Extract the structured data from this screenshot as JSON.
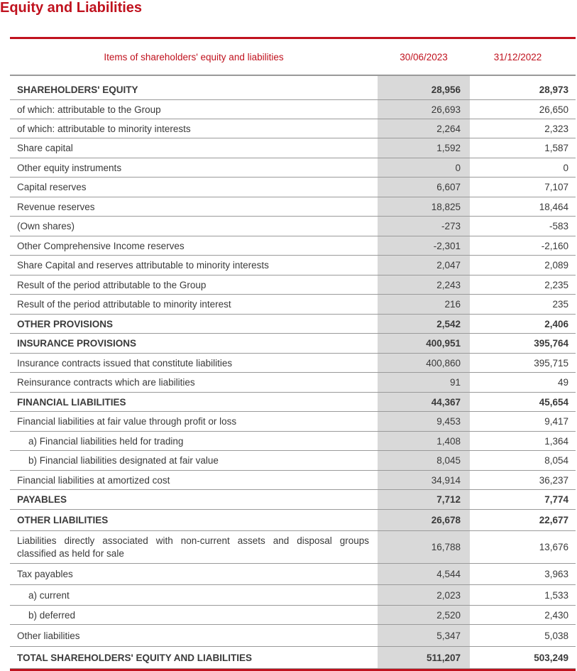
{
  "page_title": "Equity and Liabilities",
  "table": {
    "header": {
      "label": "Items of shareholders' equity and liabilities",
      "col1": "30/06/2023",
      "col2": "31/12/2022"
    },
    "rows": [
      {
        "label": "SHAREHOLDERS' EQUITY",
        "v1": "28,956",
        "v2": "28,973"
      },
      {
        "label": "of which: attributable to the Group",
        "v1": "26,693",
        "v2": "26,650"
      },
      {
        "label": "of which: attributable to minority interests",
        "v1": "2,264",
        "v2": "2,323"
      },
      {
        "label": "Share capital",
        "v1": "1,592",
        "v2": "1,587"
      },
      {
        "label": "Other equity instruments",
        "v1": "0",
        "v2": "0"
      },
      {
        "label": "Capital reserves",
        "v1": "6,607",
        "v2": "7,107"
      },
      {
        "label": "Revenue reserves",
        "v1": "18,825",
        "v2": "18,464"
      },
      {
        "label": "(Own shares)",
        "v1": "-273",
        "v2": "-583"
      },
      {
        "label": "Other Comprehensive Income reserves",
        "v1": "-2,301",
        "v2": "-2,160"
      },
      {
        "label": "Share Capital and reserves attributable to minority interests",
        "v1": "2,047",
        "v2": "2,089"
      },
      {
        "label": "Result of the period attributable to the Group",
        "v1": "2,243",
        "v2": "2,235"
      },
      {
        "label": "Result of the period attributable to minority interest",
        "v1": "216",
        "v2": "235"
      },
      {
        "label": "OTHER PROVISIONS",
        "v1": "2,542",
        "v2": "2,406"
      },
      {
        "label": "INSURANCE PROVISIONS",
        "v1": "400,951",
        "v2": "395,764"
      },
      {
        "label": "Insurance contracts issued that constitute liabilities",
        "v1": "400,860",
        "v2": "395,715"
      },
      {
        "label": "Reinsurance contracts which are liabilities",
        "v1": "91",
        "v2": "49"
      },
      {
        "label": "FINANCIAL LIABILITIES",
        "v1": "44,367",
        "v2": "45,654"
      },
      {
        "label": "Financial liabilities at fair value through profit or loss",
        "v1": "9,453",
        "v2": "9,417"
      },
      {
        "label": "a) Financial liabilities held for trading",
        "v1": "1,408",
        "v2": "1,364"
      },
      {
        "label": "b) Financial liabilities designated at fair value",
        "v1": "8,045",
        "v2": "8,054"
      },
      {
        "label": "Financial liabilities at amortized cost",
        "v1": "34,914",
        "v2": "36,237"
      },
      {
        "label": "PAYABLES",
        "v1": "7,712",
        "v2": "7,774"
      },
      {
        "label": "OTHER LIABILITIES",
        "v1": "26,678",
        "v2": "22,677"
      },
      {
        "label": "Liabilities directly associated with non-current assets and disposal groups classified as held for sale",
        "v1": "16,788",
        "v2": "13,676"
      },
      {
        "label": "Tax payables",
        "v1": "4,544",
        "v2": "3,963"
      },
      {
        "label": "a) current",
        "v1": "2,023",
        "v2": "1,533"
      },
      {
        "label": "b) deferred",
        "v1": "2,520",
        "v2": "2,430"
      },
      {
        "label": "Other liabilities",
        "v1": "5,347",
        "v2": "5,038"
      },
      {
        "label": "TOTAL SHAREHOLDERS' EQUITY AND LIABILITIES",
        "v1": "511,207",
        "v2": "503,249"
      }
    ]
  }
}
